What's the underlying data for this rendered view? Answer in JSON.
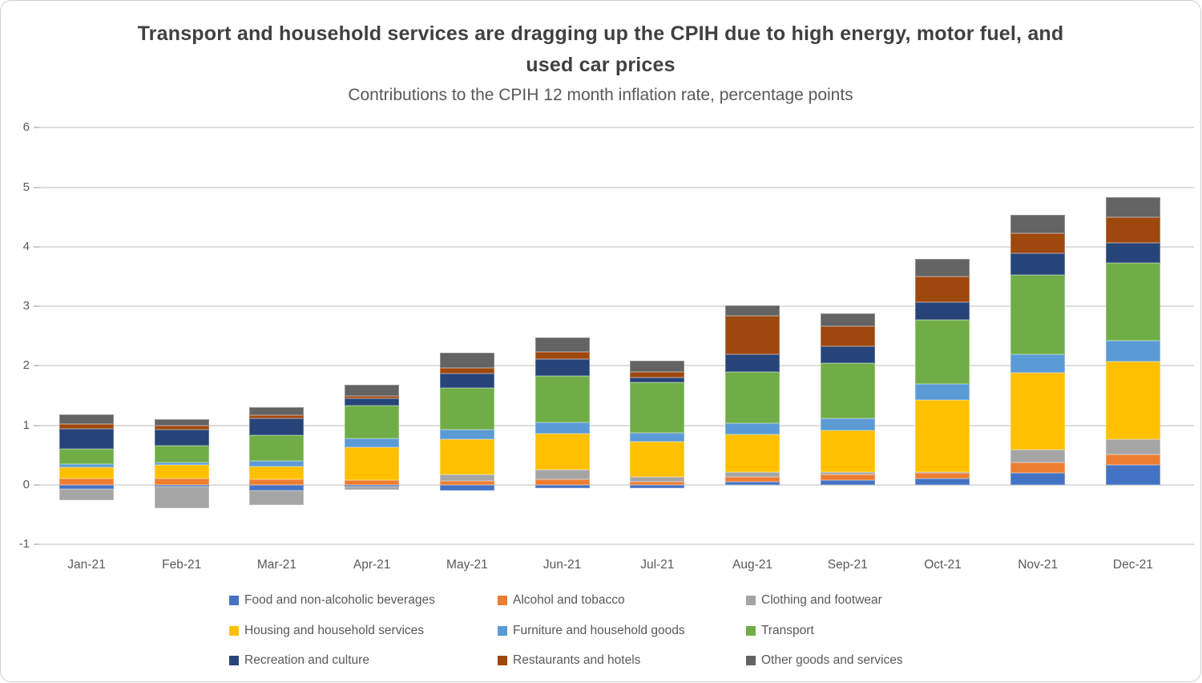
{
  "header": {
    "title": "Transport and household services are dragging up the CPIH due to high energy, motor fuel, and used car prices",
    "subtitle": "Contributions to the CPIH 12 month inflation rate, percentage points"
  },
  "chart_data": {
    "type": "bar",
    "stacked": true,
    "title": "Transport and household services are dragging up the CPIH due to high energy, motor fuel, and used car prices",
    "subtitle": "Contributions to the CPIH 12 month inflation rate, percentage points",
    "categories": [
      "Jan-21",
      "Feb-21",
      "Mar-21",
      "Apr-21",
      "May-21",
      "Jun-21",
      "Jul-21",
      "Aug-21",
      "Sep-21",
      "Oct-21",
      "Nov-21",
      "Dec-21"
    ],
    "series": [
      {
        "name": "Food and non-alcoholic beverages",
        "color": "#4472C4",
        "values": [
          -0.07,
          -0.03,
          -0.1,
          -0.03,
          -0.1,
          -0.06,
          -0.05,
          0.05,
          0.08,
          0.11,
          0.2,
          0.34
        ]
      },
      {
        "name": "Alcohol and tobacco",
        "color": "#ED7D31",
        "values": [
          0.11,
          0.11,
          0.1,
          0.08,
          0.07,
          0.1,
          0.06,
          0.09,
          0.09,
          0.09,
          0.18,
          0.17
        ]
      },
      {
        "name": "Clothing and footwear",
        "color": "#A5A5A5",
        "values": [
          -0.18,
          -0.36,
          -0.24,
          -0.05,
          0.1,
          0.16,
          0.07,
          0.07,
          0.05,
          0.02,
          0.21,
          0.26
        ]
      },
      {
        "name": "Housing and household services",
        "color": "#FFC000",
        "values": [
          0.19,
          0.22,
          0.21,
          0.55,
          0.6,
          0.6,
          0.6,
          0.64,
          0.69,
          1.2,
          1.29,
          1.3
        ]
      },
      {
        "name": "Furniture and household goods",
        "color": "#5B9BD5",
        "values": [
          0.05,
          0.05,
          0.1,
          0.15,
          0.16,
          0.19,
          0.15,
          0.19,
          0.21,
          0.27,
          0.31,
          0.35
        ]
      },
      {
        "name": "Transport",
        "color": "#70AD47",
        "values": [
          0.26,
          0.28,
          0.43,
          0.55,
          0.7,
          0.78,
          0.84,
          0.86,
          0.92,
          1.08,
          1.33,
          1.31
        ]
      },
      {
        "name": "Recreation and culture",
        "color": "#264478",
        "values": [
          0.33,
          0.27,
          0.28,
          0.12,
          0.24,
          0.28,
          0.09,
          0.29,
          0.29,
          0.3,
          0.37,
          0.33
        ]
      },
      {
        "name": "Restaurants and hotels",
        "color": "#9E480E",
        "values": [
          0.08,
          0.06,
          0.05,
          0.05,
          0.09,
          0.12,
          0.09,
          0.65,
          0.34,
          0.43,
          0.34,
          0.43
        ]
      },
      {
        "name": "Other goods and services",
        "color": "#636363",
        "values": [
          0.16,
          0.12,
          0.14,
          0.18,
          0.26,
          0.25,
          0.19,
          0.17,
          0.21,
          0.29,
          0.31,
          0.34
        ]
      }
    ],
    "ylim": [
      -1,
      6
    ],
    "ytick_interval": 1,
    "yticks": [
      "-1",
      "0",
      "1",
      "2",
      "3",
      "4",
      "5",
      "6"
    ],
    "grid": true,
    "legend_position": "bottom",
    "colors": {
      "gridline": "#DEDEDE",
      "axis_text": "#595959",
      "title_text": "#404040"
    }
  }
}
